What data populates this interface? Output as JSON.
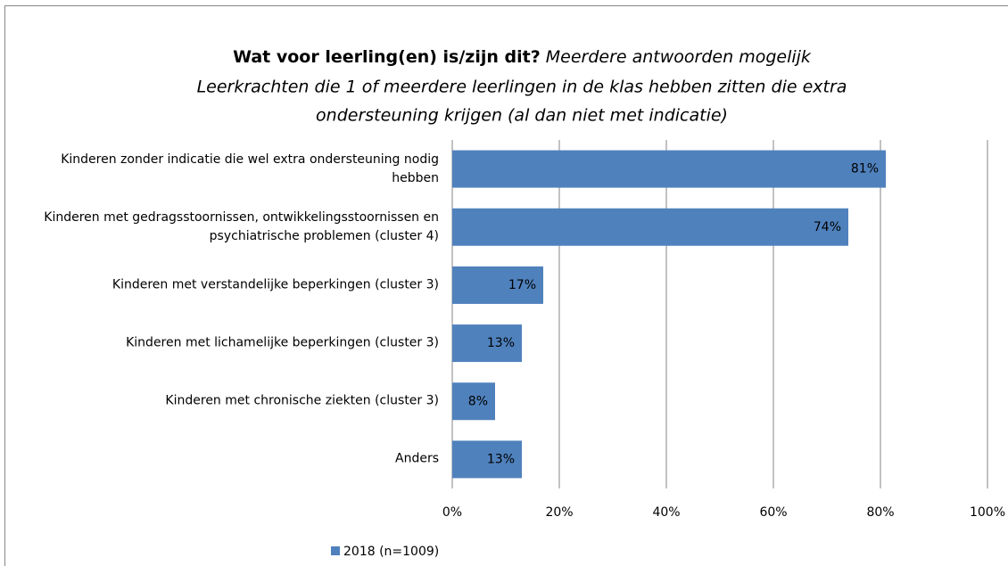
{
  "chart_data": {
    "type": "barh",
    "title": "Wat voor leerling(en) is/zijn dit?",
    "subtitle": [
      "Meerdere antwoorden mogelijk",
      "Leerkrachten die 1 of meerdere leerlingen in de klas hebben zitten die extra",
      "ondersteuning krijgen (al dan niet met indicatie)"
    ],
    "categories": [
      "Kinderen zonder indicatie die wel extra ondersteuning nodig hebben",
      "Kinderen met gedragsstoornissen, ontwikkelingsstoornissen en psychiatrische problemen (cluster 4)",
      "Kinderen met verstandelijke beperkingen (cluster 3)",
      "Kinderen met lichamelijke beperkingen (cluster 3)",
      "Kinderen met chronische ziekten (cluster 3)",
      "Anders"
    ],
    "series": [
      {
        "name": "2018 (n=1009)",
        "color": "#4f81bd",
        "values": [
          81,
          74,
          17,
          13,
          8,
          13
        ],
        "value_labels": [
          "81%",
          "74%",
          "17%",
          "13%",
          "8%",
          "13%"
        ]
      }
    ],
    "xlim": [
      0,
      100
    ],
    "xticks": [
      {
        "value": 0,
        "label": "0%"
      },
      {
        "value": 20,
        "label": "20%"
      },
      {
        "value": 40,
        "label": "40%"
      },
      {
        "value": 60,
        "label": "60%"
      },
      {
        "value": 80,
        "label": "80%"
      },
      {
        "value": 100,
        "label": "100%"
      }
    ],
    "grid": true,
    "legend": "bottom"
  }
}
